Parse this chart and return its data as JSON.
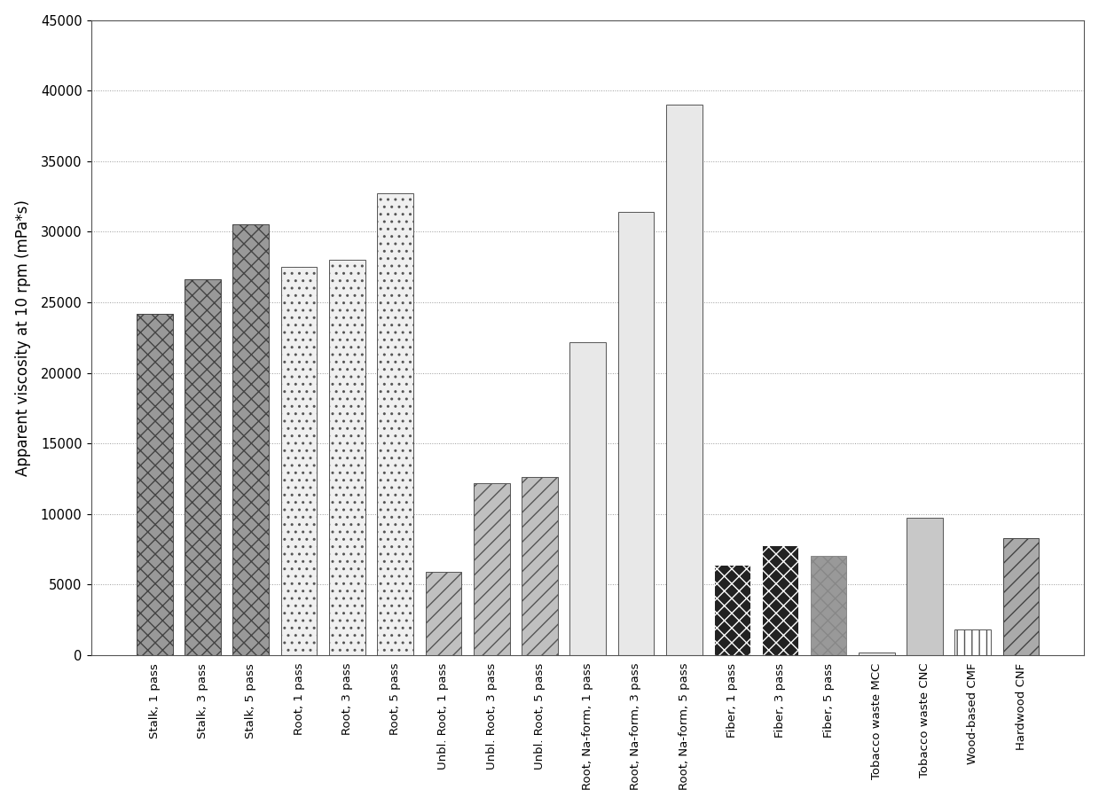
{
  "categories": [
    "Stalk, 1 pass",
    "Stalk, 3 pass",
    "Stalk, 5 pass",
    "Root, 1 pass",
    "Root, 3 pass",
    "Root, 5 pass",
    "Unbl. Root, 1 pass",
    "Unbl. Root, 3 pass",
    "Unbl. Root, 5 pass",
    "Root, Na-form, 1 pass",
    "Root, Na-form, 3 pass",
    "Root, Na-form, 5 pass",
    "Fiber, 1 pass",
    "Fiber, 3 pass",
    "Fiber, 5 pass",
    "Tobacco waste MCC",
    "Tobacco waste CNC",
    "Wood-based CMF",
    "Hardwood CNF"
  ],
  "values": [
    24200,
    26600,
    30500,
    27500,
    28000,
    32700,
    5900,
    12200,
    12600,
    22200,
    31400,
    39000,
    6400,
    7800,
    7000,
    200,
    9700,
    1800,
    8300
  ],
  "bar_styles": [
    {
      "fc": "#999999",
      "hatch": "xx",
      "ec": "#444444"
    },
    {
      "fc": "#999999",
      "hatch": "xx",
      "ec": "#444444"
    },
    {
      "fc": "#999999",
      "hatch": "xx",
      "ec": "#444444"
    },
    {
      "fc": "#f0f0f0",
      "hatch": "..",
      "ec": "#555555"
    },
    {
      "fc": "#f0f0f0",
      "hatch": "..",
      "ec": "#555555"
    },
    {
      "fc": "#f0f0f0",
      "hatch": "..",
      "ec": "#555555"
    },
    {
      "fc": "#c0c0c0",
      "hatch": "//",
      "ec": "#555555"
    },
    {
      "fc": "#c0c0c0",
      "hatch": "//",
      "ec": "#555555"
    },
    {
      "fc": "#c0c0c0",
      "hatch": "//",
      "ec": "#555555"
    },
    {
      "fc": "#e8e8e8",
      "hatch": "~~",
      "ec": "#555555"
    },
    {
      "fc": "#e8e8e8",
      "hatch": "~~",
      "ec": "#555555"
    },
    {
      "fc": "#e8e8e8",
      "hatch": "~~",
      "ec": "#555555"
    },
    {
      "fc": "#222222",
      "hatch": "xx",
      "ec": "#ffffff"
    },
    {
      "fc": "#222222",
      "hatch": "xx",
      "ec": "#ffffff"
    },
    {
      "fc": "#999999",
      "hatch": "xx",
      "ec": "#888888"
    },
    {
      "fc": "#e8e8e8",
      "hatch": "",
      "ec": "#555555"
    },
    {
      "fc": "#c8c8c8",
      "hatch": "",
      "ec": "#555555"
    },
    {
      "fc": "#ffffff",
      "hatch": "||",
      "ec": "#555555"
    },
    {
      "fc": "#aaaaaa",
      "hatch": "//",
      "ec": "#444444"
    }
  ],
  "ylabel": "Apparent viscosity at 10 rpm (mPa*s)",
  "ylim": [
    0,
    45000
  ],
  "yticks": [
    0,
    5000,
    10000,
    15000,
    20000,
    25000,
    30000,
    35000,
    40000,
    45000
  ],
  "grid_linestyle": ":",
  "grid_color": "#999999",
  "background_color": "#ffffff",
  "bar_width": 0.75
}
